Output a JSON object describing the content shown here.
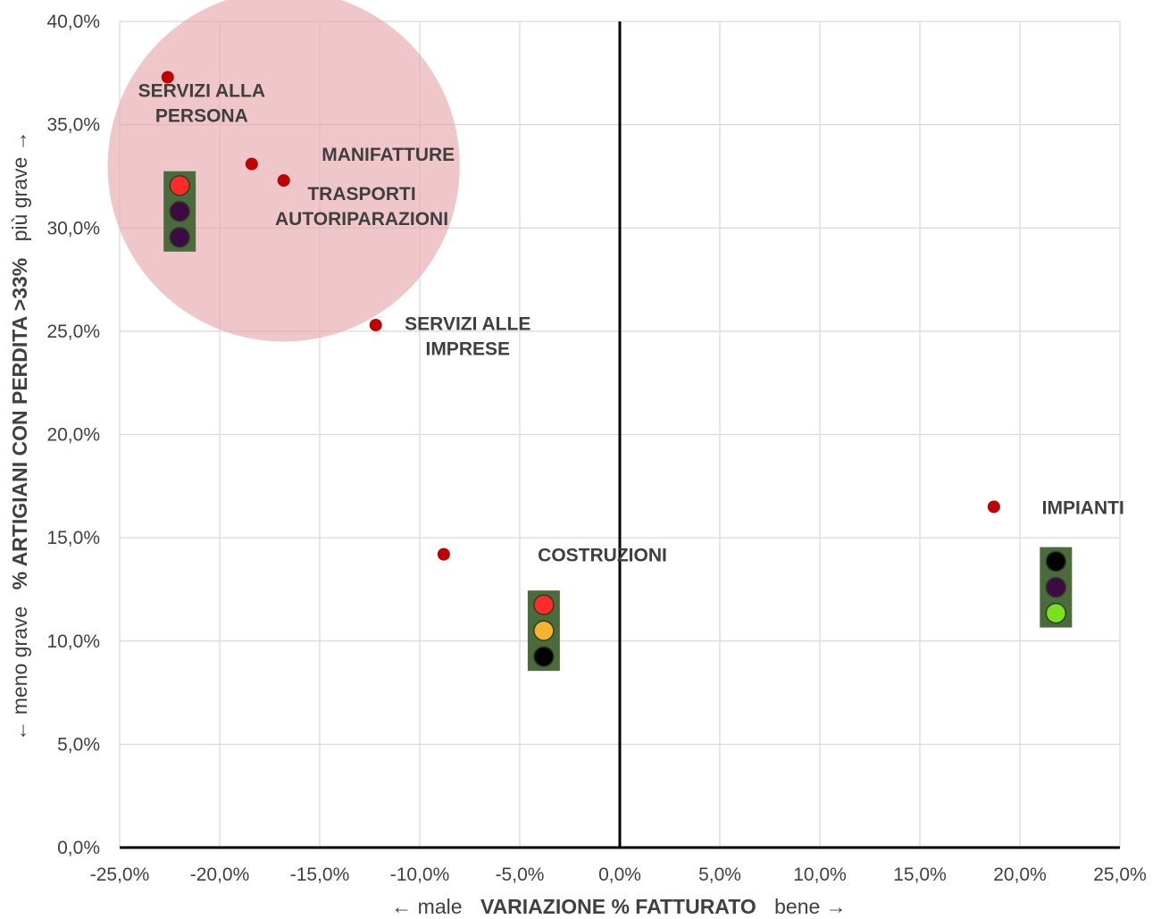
{
  "chart_data": {
    "type": "scatter",
    "title": "",
    "x_axis": {
      "label_left": "← male",
      "label_main": "VARIAZIONE % FATTURATO",
      "label_right": "bene →",
      "range": [
        -25,
        25
      ],
      "ticks": [
        -25,
        -20,
        -15,
        -10,
        -5,
        0,
        5,
        10,
        15,
        20,
        25
      ],
      "tick_labels": [
        "-25,0%",
        "-20,0%",
        "-15,0%",
        "-10,0%",
        "-5,0%",
        "0,0%",
        "5,0%",
        "10,0%",
        "15,0%",
        "20,0%",
        "25,0%"
      ]
    },
    "y_axis": {
      "label_left": "← meno grave",
      "label_main": "% ARTIGIANI CON PERDITA >33%",
      "label_right": "più grave →",
      "range": [
        0,
        40
      ],
      "ticks": [
        0,
        5,
        10,
        15,
        20,
        25,
        30,
        35,
        40
      ],
      "tick_labels": [
        "0,0%",
        "5,0%",
        "10,0%",
        "15,0%",
        "20,0%",
        "25,0%",
        "30,0%",
        "35,0%",
        "40,0%"
      ]
    },
    "grid": true,
    "point_color": "#c00000",
    "highlight_color": "#e7a8ae",
    "points": [
      {
        "name": "servizi-alla-persona",
        "x": -22.6,
        "y": 37.3,
        "label": [
          "SERVIZI ALLA",
          "PERSONA"
        ],
        "label_x": -20.9,
        "label_y": 36.7
      },
      {
        "name": "manifatture",
        "x": -18.4,
        "y": 33.1,
        "label": [
          "MANIFATTURE"
        ],
        "label_x": -14.9,
        "label_y": 33.6
      },
      {
        "name": "trasporti-autoriparazioni",
        "x": -16.8,
        "y": 32.3,
        "label": [
          "TRASPORTI",
          "AUTORIPARAZIONI"
        ],
        "label_x": -12.9,
        "label_y": 31.7
      },
      {
        "name": "servizi-alle-imprese",
        "x": -12.2,
        "y": 25.3,
        "label": [
          "SERVIZI ALLE",
          "IMPRESE"
        ],
        "label_x": -7.6,
        "label_y": 25.4
      },
      {
        "name": "costruzioni",
        "x": -8.8,
        "y": 14.2,
        "label": [
          "COSTRUZIONI"
        ],
        "label_x": -4.1,
        "label_y": 14.2
      },
      {
        "name": "impianti",
        "x": 18.7,
        "y": 16.5,
        "label": [
          "IMPIANTI"
        ],
        "label_x": 21.1,
        "label_y": 16.5
      }
    ],
    "highlight_ellipse": {
      "cx": -16.8,
      "cy": 33.0,
      "rx": 8.8,
      "ry": 8.5
    },
    "traffic_lights": [
      {
        "name": "traffic-light-left",
        "x": -22.0,
        "y": 30.8,
        "lights": [
          "#ff2a2a",
          "#3d0a44",
          "#3d0a44"
        ]
      },
      {
        "name": "traffic-light-center",
        "x": -3.8,
        "y": 10.5,
        "lights": [
          "#ff2a2a",
          "#f7b230",
          "#000000"
        ]
      },
      {
        "name": "traffic-light-right",
        "x": 21.8,
        "y": 12.6,
        "lights": [
          "#000000",
          "#3d0a44",
          "#78e21f"
        ]
      }
    ]
  }
}
